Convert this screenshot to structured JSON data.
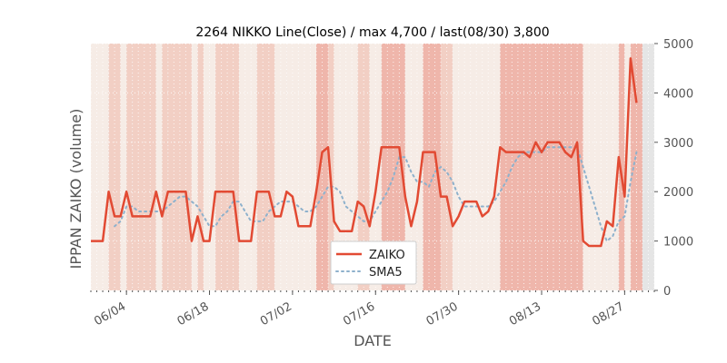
{
  "chart_data": {
    "type": "line",
    "title": "2264 NIKKO Line(Close) / max 4,700 / last(08/30) 3,800",
    "xlabel": "DATE",
    "ylabel": "IPPAN ZAIKO (volume)",
    "ylim": [
      0,
      5000
    ],
    "yticks": [
      0,
      1000,
      2000,
      3000,
      4000,
      5000
    ],
    "ytick_labels": [
      "0",
      "1000",
      "2000",
      "3000",
      "4000",
      "5000"
    ],
    "x_range": [
      "2024-05-29",
      "2024-09-01"
    ],
    "xticks": [
      "2024-06-04",
      "2024-06-18",
      "2024-07-02",
      "2024-07-16",
      "2024-07-30",
      "2024-08-13",
      "2024-08-27"
    ],
    "xtick_labels": [
      "06/04",
      "06/18",
      "07/02",
      "07/16",
      "07/30",
      "08/13",
      "08/27"
    ],
    "grid": true,
    "legend_position": "bottom-center",
    "colors": {
      "zaiko": "#e24a33",
      "sma5": "#8eb1cc",
      "axes_bg": "#e5e5e5",
      "band_light": "#f6ece6",
      "band_mid": "#f2cfc4",
      "band_dark": "#efb6ab"
    },
    "series": [
      {
        "name": "ZAIKO",
        "style": "solid",
        "points": [
          [
            "2024-05-29",
            1000
          ],
          [
            "2024-05-30",
            1000
          ],
          [
            "2024-05-31",
            1000
          ],
          [
            "2024-06-01",
            2000
          ],
          [
            "2024-06-02",
            1500
          ],
          [
            "2024-06-03",
            1500
          ],
          [
            "2024-06-04",
            2000
          ],
          [
            "2024-06-05",
            1500
          ],
          [
            "2024-06-06",
            1500
          ],
          [
            "2024-06-07",
            1500
          ],
          [
            "2024-06-08",
            1500
          ],
          [
            "2024-06-09",
            2000
          ],
          [
            "2024-06-10",
            1500
          ],
          [
            "2024-06-11",
            2000
          ],
          [
            "2024-06-12",
            2000
          ],
          [
            "2024-06-13",
            2000
          ],
          [
            "2024-06-14",
            2000
          ],
          [
            "2024-06-15",
            1000
          ],
          [
            "2024-06-16",
            1500
          ],
          [
            "2024-06-17",
            1000
          ],
          [
            "2024-06-18",
            1000
          ],
          [
            "2024-06-19",
            2000
          ],
          [
            "2024-06-20",
            2000
          ],
          [
            "2024-06-21",
            2000
          ],
          [
            "2024-06-22",
            2000
          ],
          [
            "2024-06-23",
            1000
          ],
          [
            "2024-06-24",
            1000
          ],
          [
            "2024-06-25",
            1000
          ],
          [
            "2024-06-26",
            2000
          ],
          [
            "2024-06-27",
            2000
          ],
          [
            "2024-06-28",
            2000
          ],
          [
            "2024-06-29",
            1500
          ],
          [
            "2024-06-30",
            1500
          ],
          [
            "2024-07-01",
            2000
          ],
          [
            "2024-07-02",
            1900
          ],
          [
            "2024-07-03",
            1300
          ],
          [
            "2024-07-04",
            1300
          ],
          [
            "2024-07-05",
            1300
          ],
          [
            "2024-07-06",
            2000
          ],
          [
            "2024-07-07",
            2800
          ],
          [
            "2024-07-08",
            2900
          ],
          [
            "2024-07-09",
            1400
          ],
          [
            "2024-07-10",
            1200
          ],
          [
            "2024-07-11",
            1200
          ],
          [
            "2024-07-12",
            1200
          ],
          [
            "2024-07-13",
            1800
          ],
          [
            "2024-07-14",
            1700
          ],
          [
            "2024-07-15",
            1300
          ],
          [
            "2024-07-16",
            2000
          ],
          [
            "2024-07-17",
            2900
          ],
          [
            "2024-07-18",
            2900
          ],
          [
            "2024-07-19",
            2900
          ],
          [
            "2024-07-20",
            2900
          ],
          [
            "2024-07-21",
            1900
          ],
          [
            "2024-07-22",
            1300
          ],
          [
            "2024-07-23",
            1800
          ],
          [
            "2024-07-24",
            2800
          ],
          [
            "2024-07-25",
            2800
          ],
          [
            "2024-07-26",
            2800
          ],
          [
            "2024-07-27",
            1900
          ],
          [
            "2024-07-28",
            1900
          ],
          [
            "2024-07-29",
            1300
          ],
          [
            "2024-07-30",
            1500
          ],
          [
            "2024-07-31",
            1800
          ],
          [
            "2024-08-01",
            1800
          ],
          [
            "2024-08-02",
            1800
          ],
          [
            "2024-08-03",
            1500
          ],
          [
            "2024-08-04",
            1600
          ],
          [
            "2024-08-05",
            1900
          ],
          [
            "2024-08-06",
            2900
          ],
          [
            "2024-08-07",
            2800
          ],
          [
            "2024-08-08",
            2800
          ],
          [
            "2024-08-09",
            2800
          ],
          [
            "2024-08-10",
            2800
          ],
          [
            "2024-08-11",
            2700
          ],
          [
            "2024-08-12",
            3000
          ],
          [
            "2024-08-13",
            2800
          ],
          [
            "2024-08-14",
            3000
          ],
          [
            "2024-08-15",
            3000
          ],
          [
            "2024-08-16",
            3000
          ],
          [
            "2024-08-17",
            2800
          ],
          [
            "2024-08-18",
            2700
          ],
          [
            "2024-08-19",
            3000
          ],
          [
            "2024-08-20",
            1000
          ],
          [
            "2024-08-21",
            900
          ],
          [
            "2024-08-22",
            900
          ],
          [
            "2024-08-23",
            900
          ],
          [
            "2024-08-24",
            1400
          ],
          [
            "2024-08-25",
            1300
          ],
          [
            "2024-08-26",
            2700
          ],
          [
            "2024-08-27",
            1900
          ],
          [
            "2024-08-28",
            4700
          ],
          [
            "2024-08-29",
            3800
          ]
        ]
      },
      {
        "name": "SMA5",
        "style": "dotted",
        "points": [
          [
            "2024-06-02",
            1300
          ],
          [
            "2024-06-03",
            1400
          ],
          [
            "2024-06-04",
            1700
          ],
          [
            "2024-06-05",
            1700
          ],
          [
            "2024-06-06",
            1600
          ],
          [
            "2024-06-07",
            1600
          ],
          [
            "2024-06-08",
            1600
          ],
          [
            "2024-06-09",
            1600
          ],
          [
            "2024-06-10",
            1600
          ],
          [
            "2024-06-11",
            1700
          ],
          [
            "2024-06-12",
            1800
          ],
          [
            "2024-06-13",
            1900
          ],
          [
            "2024-06-14",
            1900
          ],
          [
            "2024-06-15",
            1800
          ],
          [
            "2024-06-16",
            1700
          ],
          [
            "2024-06-17",
            1500
          ],
          [
            "2024-06-18",
            1300
          ],
          [
            "2024-06-19",
            1300
          ],
          [
            "2024-06-20",
            1500
          ],
          [
            "2024-06-21",
            1600
          ],
          [
            "2024-06-22",
            1800
          ],
          [
            "2024-06-23",
            1800
          ],
          [
            "2024-06-24",
            1600
          ],
          [
            "2024-06-25",
            1400
          ],
          [
            "2024-06-26",
            1400
          ],
          [
            "2024-06-27",
            1400
          ],
          [
            "2024-06-28",
            1600
          ],
          [
            "2024-06-29",
            1700
          ],
          [
            "2024-06-30",
            1800
          ],
          [
            "2024-07-01",
            1800
          ],
          [
            "2024-07-02",
            1800
          ],
          [
            "2024-07-03",
            1700
          ],
          [
            "2024-07-04",
            1600
          ],
          [
            "2024-07-05",
            1600
          ],
          [
            "2024-07-06",
            1700
          ],
          [
            "2024-07-07",
            1900
          ],
          [
            "2024-07-08",
            2100
          ],
          [
            "2024-07-09",
            2100
          ],
          [
            "2024-07-10",
            2000
          ],
          [
            "2024-07-11",
            1700
          ],
          [
            "2024-07-12",
            1600
          ],
          [
            "2024-07-13",
            1500
          ],
          [
            "2024-07-14",
            1400
          ],
          [
            "2024-07-15",
            1400
          ],
          [
            "2024-07-16",
            1600
          ],
          [
            "2024-07-17",
            1800
          ],
          [
            "2024-07-18",
            2000
          ],
          [
            "2024-07-19",
            2300
          ],
          [
            "2024-07-20",
            2700
          ],
          [
            "2024-07-21",
            2700
          ],
          [
            "2024-07-22",
            2400
          ],
          [
            "2024-07-23",
            2200
          ],
          [
            "2024-07-24",
            2200
          ],
          [
            "2024-07-25",
            2100
          ],
          [
            "2024-07-26",
            2400
          ],
          [
            "2024-07-27",
            2500
          ],
          [
            "2024-07-28",
            2400
          ],
          [
            "2024-07-29",
            2200
          ],
          [
            "2024-07-30",
            1900
          ],
          [
            "2024-07-31",
            1700
          ],
          [
            "2024-08-01",
            1700
          ],
          [
            "2024-08-02",
            1700
          ],
          [
            "2024-08-03",
            1700
          ],
          [
            "2024-08-04",
            1700
          ],
          [
            "2024-08-05",
            1800
          ],
          [
            "2024-08-06",
            2000
          ],
          [
            "2024-08-07",
            2200
          ],
          [
            "2024-08-08",
            2500
          ],
          [
            "2024-08-09",
            2700
          ],
          [
            "2024-08-10",
            2800
          ],
          [
            "2024-08-11",
            2800
          ],
          [
            "2024-08-12",
            2800
          ],
          [
            "2024-08-13",
            2800
          ],
          [
            "2024-08-14",
            2900
          ],
          [
            "2024-08-15",
            2900
          ],
          [
            "2024-08-16",
            2900
          ],
          [
            "2024-08-17",
            2900
          ],
          [
            "2024-08-18",
            2900
          ],
          [
            "2024-08-19",
            2900
          ],
          [
            "2024-08-20",
            2500
          ],
          [
            "2024-08-21",
            2100
          ],
          [
            "2024-08-22",
            1700
          ],
          [
            "2024-08-23",
            1300
          ],
          [
            "2024-08-24",
            1000
          ],
          [
            "2024-08-25",
            1100
          ],
          [
            "2024-08-26",
            1400
          ],
          [
            "2024-08-27",
            1500
          ],
          [
            "2024-08-28",
            2200
          ],
          [
            "2024-08-29",
            2800
          ]
        ]
      }
    ],
    "bands": [
      [
        "2024-05-29",
        "2024-05-30",
        "light"
      ],
      [
        "2024-05-30",
        "2024-06-01",
        "light"
      ],
      [
        "2024-06-01",
        "2024-06-03",
        "mid"
      ],
      [
        "2024-06-03",
        "2024-06-04",
        "light"
      ],
      [
        "2024-06-04",
        "2024-06-05",
        "mid"
      ],
      [
        "2024-06-05",
        "2024-06-09",
        "mid"
      ],
      [
        "2024-06-09",
        "2024-06-10",
        "light"
      ],
      [
        "2024-06-10",
        "2024-06-11",
        "mid"
      ],
      [
        "2024-06-11",
        "2024-06-15",
        "mid"
      ],
      [
        "2024-06-15",
        "2024-06-16",
        "light"
      ],
      [
        "2024-06-16",
        "2024-06-17",
        "mid"
      ],
      [
        "2024-06-17",
        "2024-06-19",
        "light"
      ],
      [
        "2024-06-19",
        "2024-06-23",
        "mid"
      ],
      [
        "2024-06-23",
        "2024-06-26",
        "light"
      ],
      [
        "2024-06-26",
        "2024-06-29",
        "mid"
      ],
      [
        "2024-06-29",
        "2024-07-01",
        "light"
      ],
      [
        "2024-07-01",
        "2024-07-03",
        "light"
      ],
      [
        "2024-07-03",
        "2024-07-06",
        "light"
      ],
      [
        "2024-07-06",
        "2024-07-08",
        "dark"
      ],
      [
        "2024-07-08",
        "2024-07-09",
        "mid"
      ],
      [
        "2024-07-09",
        "2024-07-13",
        "light"
      ],
      [
        "2024-07-13",
        "2024-07-15",
        "mid"
      ],
      [
        "2024-07-15",
        "2024-07-17",
        "light"
      ],
      [
        "2024-07-17",
        "2024-07-21",
        "dark"
      ],
      [
        "2024-07-21",
        "2024-07-24",
        "light"
      ],
      [
        "2024-07-24",
        "2024-07-27",
        "dark"
      ],
      [
        "2024-07-27",
        "2024-07-29",
        "mid"
      ],
      [
        "2024-07-29",
        "2024-08-06",
        "light"
      ],
      [
        "2024-08-06",
        "2024-08-20",
        "dark"
      ],
      [
        "2024-08-20",
        "2024-08-24",
        "light"
      ],
      [
        "2024-08-24",
        "2024-08-26",
        "light"
      ],
      [
        "2024-08-26",
        "2024-08-27",
        "dark"
      ],
      [
        "2024-08-27",
        "2024-08-28",
        "light"
      ],
      [
        "2024-08-28",
        "2024-08-30",
        "dark"
      ]
    ]
  }
}
